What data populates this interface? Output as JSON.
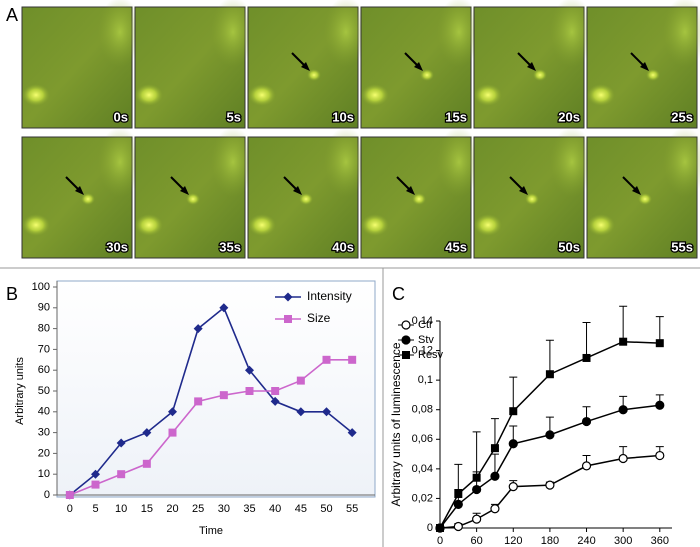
{
  "panel_a": {
    "label": "A",
    "frames": [
      "0s",
      "5s",
      "10s",
      "15s",
      "20s",
      "25s",
      "30s",
      "35s",
      "40s",
      "45s",
      "50s",
      "55s"
    ]
  },
  "chart_data": [
    {
      "type": "line",
      "panel_label": "B",
      "x_label": "Time",
      "y_label": "Arbitrary units",
      "categories": [
        "0",
        "5",
        "10",
        "15",
        "20",
        "25",
        "30",
        "35",
        "40",
        "45",
        "50",
        "55"
      ],
      "series": [
        {
          "name": "Intensity",
          "color": "#1f2a8c",
          "marker": "diamond",
          "values": [
            0,
            10,
            25,
            30,
            40,
            80,
            90,
            60,
            45,
            40,
            40,
            30
          ]
        },
        {
          "name": "Size",
          "color": "#cc66cc",
          "marker": "square",
          "values": [
            0,
            5,
            10,
            15,
            30,
            45,
            48,
            50,
            50,
            55,
            65,
            65
          ]
        }
      ],
      "ylim": [
        0,
        100
      ],
      "yticks": [
        0,
        10,
        20,
        30,
        40,
        50,
        60,
        70,
        80,
        90,
        100
      ],
      "legend": "top-right"
    },
    {
      "type": "errorline",
      "panel_label": "C",
      "y_label": "Arbitrary units of luminescence",
      "x": [
        0,
        30,
        60,
        90,
        120,
        180,
        240,
        300,
        360
      ],
      "series": [
        {
          "name": "Ctr",
          "color": "#000000",
          "marker": "circle-open",
          "values": [
            0,
            0.001,
            0.006,
            0.013,
            0.028,
            0.029,
            0.042,
            0.047,
            0.049
          ],
          "errors": [
            0,
            0.002,
            0.004,
            0.003,
            0.004,
            0.002,
            0.007,
            0.008,
            0.006
          ]
        },
        {
          "name": "Stv",
          "color": "#000000",
          "marker": "circle",
          "values": [
            0,
            0.016,
            0.026,
            0.035,
            0.057,
            0.063,
            0.072,
            0.08,
            0.083
          ],
          "errors": [
            0,
            0.01,
            0.012,
            0.015,
            0.012,
            0.012,
            0.01,
            0.009,
            0.007
          ]
        },
        {
          "name": "Resv",
          "color": "#000000",
          "marker": "square",
          "values": [
            0,
            0.023,
            0.034,
            0.054,
            0.079,
            0.104,
            0.115,
            0.126,
            0.125
          ],
          "errors": [
            0,
            0.02,
            0.031,
            0.02,
            0.023,
            0.023,
            0.024,
            0.024,
            0.018
          ]
        }
      ],
      "xlim": [
        0,
        380
      ],
      "xticks": [
        0,
        60,
        120,
        180,
        240,
        300,
        360
      ],
      "ylim": [
        0,
        0.14
      ],
      "yticks": [
        0,
        {
          "value": 0.02,
          "label": "0,02"
        },
        {
          "value": 0.04,
          "label": "0,04"
        },
        {
          "value": 0.06,
          "label": "0,06"
        },
        {
          "value": 0.08,
          "label": "0,08"
        },
        {
          "value": 0.1,
          "label": "0,1"
        },
        {
          "value": 0.12,
          "label": "0,12"
        },
        {
          "value": 0.14,
          "label": "0,14"
        }
      ],
      "legend": "top-left"
    }
  ]
}
